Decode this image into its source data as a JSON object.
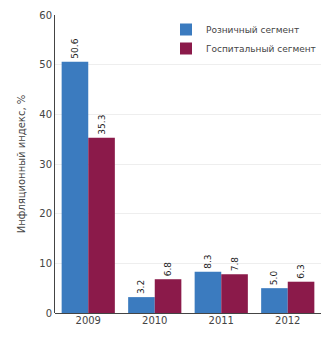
{
  "chart_data": {
    "type": "bar",
    "categories": [
      "2009",
      "2010",
      "2011",
      "2012"
    ],
    "series": [
      {
        "name": "Розничный сегмент",
        "color": "#3b7bbf",
        "values": [
          50.6,
          3.2,
          8.3,
          5.0
        ],
        "value_labels": [
          "50.6",
          "3.2",
          "8.3",
          "5.0"
        ]
      },
      {
        "name": "Госпитальный сегмент",
        "color": "#8b1a4a",
        "values": [
          35.3,
          6.8,
          7.8,
          6.3
        ],
        "value_labels": [
          "35.3",
          "6.8",
          "7.8",
          "6.3"
        ]
      }
    ],
    "ylabel": "Инфляционный индекс, %",
    "ylim": [
      0,
      60
    ],
    "yticks": [
      0,
      10,
      20,
      30,
      40,
      50,
      60
    ],
    "grid": true,
    "legend": "upper right",
    "data_labels": true
  }
}
